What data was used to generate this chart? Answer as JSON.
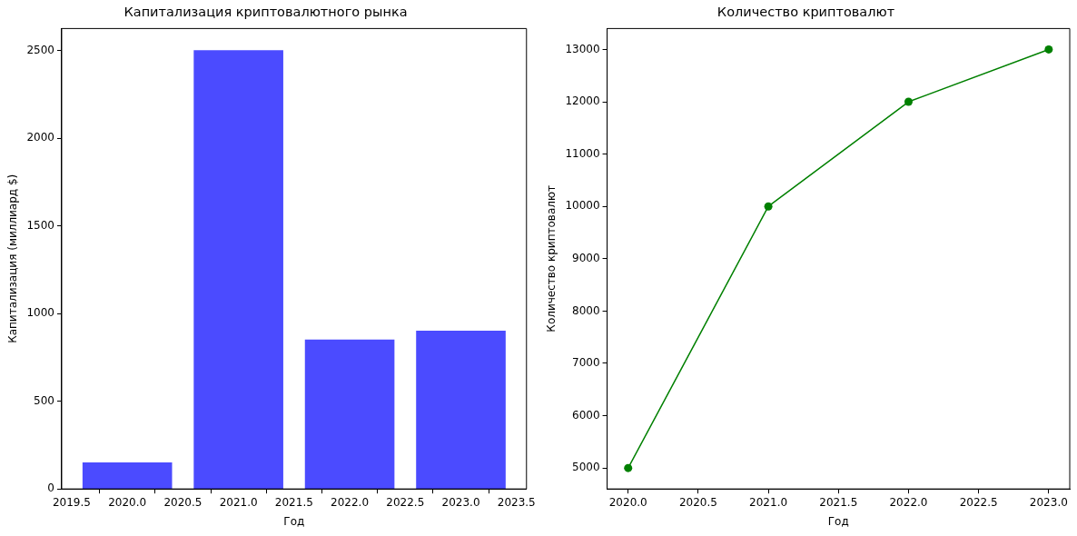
{
  "chart_data": [
    {
      "type": "bar",
      "title": "Капитализация криптовалютного рынка",
      "xlabel": "Год",
      "ylabel": "Капитализация (миллиард $)",
      "x": [
        2020,
        2021,
        2022,
        2023
      ],
      "series": [
        {
          "color": "#4b4bff",
          "values": [
            150,
            2500,
            850,
            900
          ]
        }
      ],
      "xlim": [
        2019.41,
        2023.59
      ],
      "xticks": [
        2019.5,
        {
          "value": 2020,
          "label": "2020.0"
        },
        2020.5,
        {
          "value": 2021,
          "label": "2021.0"
        },
        2021.5,
        {
          "value": 2022,
          "label": "2022.0"
        },
        2022.5,
        {
          "value": 2023,
          "label": "2023.0"
        },
        2023.5
      ],
      "ylim": [
        0,
        2625
      ],
      "yticks": [
        0,
        500,
        1000,
        1500,
        2000,
        2500
      ],
      "grid": false,
      "legend": false
    },
    {
      "type": "line",
      "title": "Количество криптовалют",
      "xlabel": "Год",
      "ylabel": "Количество криптовалют",
      "x": [
        2020,
        2021,
        2022,
        2023
      ],
      "series": [
        {
          "color": "#008000",
          "values": [
            5000,
            10000,
            12000,
            13000
          ]
        }
      ],
      "xlim": [
        2019.85,
        2023.15
      ],
      "xticks": [
        {
          "value": 2020,
          "label": "2020.0"
        },
        2020.5,
        {
          "value": 2021,
          "label": "2021.0"
        },
        2021.5,
        {
          "value": 2022,
          "label": "2022.0"
        },
        2022.5,
        {
          "value": 2023,
          "label": "2023.0"
        }
      ],
      "ylim": [
        4600,
        13400
      ],
      "yticks": [
        5000,
        6000,
        7000,
        8000,
        9000,
        10000,
        11000,
        12000,
        13000
      ],
      "grid": false,
      "legend": false,
      "marker": "circle",
      "line_style": "solid"
    }
  ]
}
